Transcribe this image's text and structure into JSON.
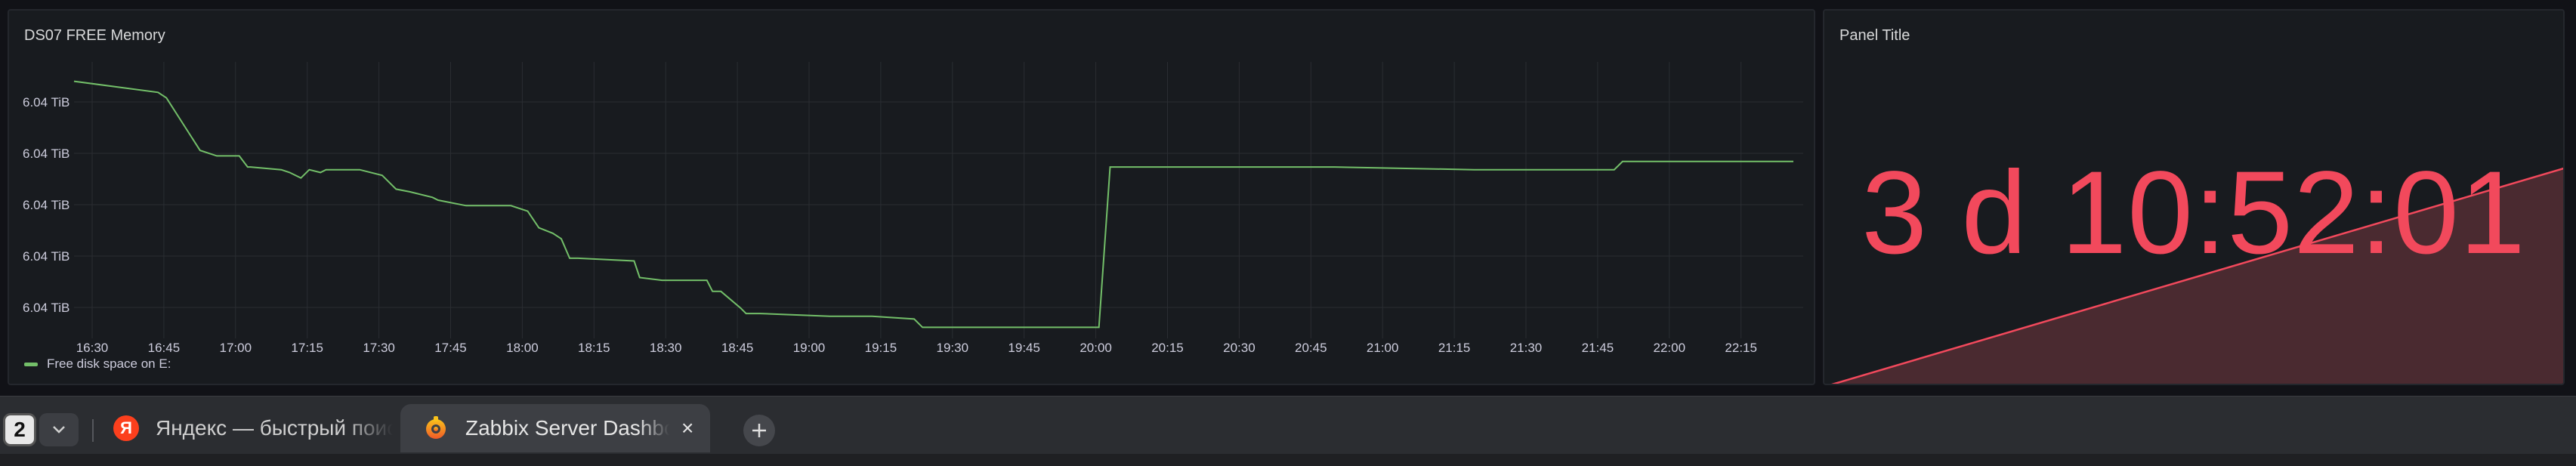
{
  "graph_panel": {
    "title": "DS07 FREE Memory",
    "legend": "Free disk space on E:"
  },
  "stat_panel": {
    "title": "Panel Title",
    "value": "3 d 10:52:01",
    "color": "#f2495c"
  },
  "chart_data": {
    "type": "line",
    "title": "DS07 FREE Memory",
    "series_name": "Free disk space on E:",
    "line_color": "#73bf69",
    "grid": true,
    "legend_position": "bottom-left",
    "y_tick_labels": [
      "6.04 TiB",
      "6.04 TiB",
      "6.04 TiB",
      "6.04 TiB",
      "6.04 TiB"
    ],
    "x_tick_labels": [
      "16:30",
      "16:45",
      "17:00",
      "17:15",
      "17:30",
      "17:45",
      "18:00",
      "18:15",
      "18:30",
      "18:45",
      "19:00",
      "19:15",
      "19:30",
      "19:45",
      "20:00",
      "20:15",
      "20:30",
      "20:45",
      "21:00",
      "21:15",
      "21:30",
      "21:45",
      "22:00",
      "22:15"
    ],
    "x_minutes": [
      0,
      30,
      33,
      45,
      51,
      59,
      62,
      63,
      74,
      77,
      81,
      84,
      88,
      90,
      92,
      102,
      110,
      115,
      120,
      128,
      130,
      140,
      156,
      162,
      166,
      171,
      174,
      177,
      180,
      200,
      202,
      210,
      225,
      226,
      228,
      231,
      238,
      240,
      242,
      245,
      270,
      280,
      285,
      300,
      303,
      329,
      332,
      366,
      370,
      376,
      384,
      400,
      402,
      450,
      500,
      540,
      550,
      553,
      603,
      614
    ],
    "y_rel": [
      0.93,
      0.89,
      0.87,
      0.68,
      0.66,
      0.66,
      0.62,
      0.62,
      0.61,
      0.6,
      0.58,
      0.61,
      0.6,
      0.61,
      0.61,
      0.61,
      0.59,
      0.54,
      0.53,
      0.51,
      0.5,
      0.48,
      0.48,
      0.46,
      0.4,
      0.38,
      0.36,
      0.29,
      0.29,
      0.28,
      0.22,
      0.21,
      0.21,
      0.21,
      0.17,
      0.17,
      0.11,
      0.09,
      0.09,
      0.09,
      0.08,
      0.08,
      0.08,
      0.07,
      0.04,
      0.04,
      0.04,
      0.04,
      0.62,
      0.62,
      0.62,
      0.62,
      0.62,
      0.62,
      0.61,
      0.61,
      0.61,
      0.64,
      0.64,
      0.64
    ]
  },
  "tabs": {
    "count": "2",
    "inactive_tab": {
      "icon": "yandex-icon",
      "label": "Яндекс — быстрый поиск",
      "glyph": "Я"
    },
    "active_tab": {
      "icon": "grafana-icon",
      "label": "Zabbix Server Dashboard",
      "close": "×"
    }
  }
}
